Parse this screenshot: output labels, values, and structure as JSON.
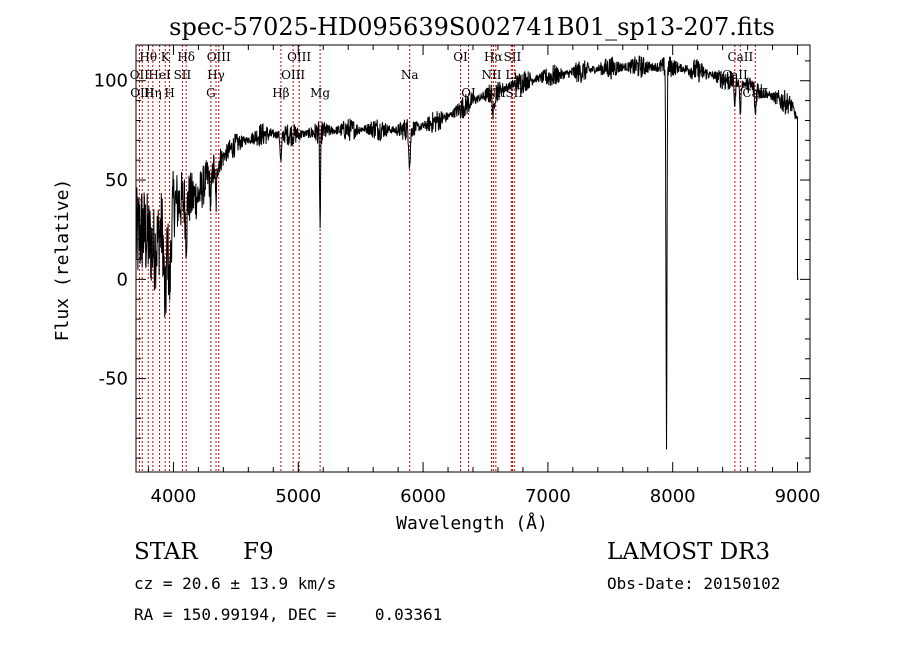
{
  "chart_data": {
    "type": "line",
    "title": "spec-57025-HD095639S002741B01_sp13-207.fits",
    "xlabel": "Wavelength (Å)",
    "ylabel": "Flux (relative)",
    "xlim": [
      3700,
      9100
    ],
    "ylim": [
      -97,
      118
    ],
    "xticks": [
      4000,
      5000,
      6000,
      7000,
      8000,
      9000
    ],
    "yticks": [
      -50,
      0,
      50,
      100
    ],
    "x_minor_step": 200,
    "y_minor_step": 10,
    "continuum": [
      [
        3700,
        20
      ],
      [
        3750,
        25
      ],
      [
        3800,
        20
      ],
      [
        3850,
        15
      ],
      [
        3900,
        25
      ],
      [
        3950,
        35
      ],
      [
        4000,
        38
      ],
      [
        4100,
        40
      ],
      [
        4200,
        42
      ],
      [
        4300,
        55
      ],
      [
        4400,
        62
      ],
      [
        4500,
        68
      ],
      [
        4700,
        73
      ],
      [
        5000,
        73
      ],
      [
        5300,
        75
      ],
      [
        5600,
        76
      ],
      [
        5800,
        75
      ],
      [
        6000,
        77
      ],
      [
        6200,
        82
      ],
      [
        6400,
        90
      ],
      [
        6600,
        95
      ],
      [
        6800,
        100
      ],
      [
        7000,
        102
      ],
      [
        7200,
        104
      ],
      [
        7400,
        106
      ],
      [
        7600,
        107
      ],
      [
        7800,
        107
      ],
      [
        8000,
        107
      ],
      [
        8200,
        105
      ],
      [
        8400,
        101
      ],
      [
        8600,
        98
      ],
      [
        8800,
        92
      ],
      [
        8950,
        88
      ],
      [
        9000,
        80
      ]
    ],
    "absorption_features": [
      {
        "center": 3934,
        "depth": 45,
        "width": 10
      },
      {
        "center": 3969,
        "depth": 40,
        "width": 10
      },
      {
        "center": 4102,
        "depth": 18,
        "width": 6
      },
      {
        "center": 4300,
        "depth": 14,
        "width": 8
      },
      {
        "center": 4341,
        "depth": 20,
        "width": 6
      },
      {
        "center": 4861,
        "depth": 14,
        "width": 6
      },
      {
        "center": 5175,
        "depth": 48,
        "width": 4
      },
      {
        "center": 5893,
        "depth": 18,
        "width": 6
      },
      {
        "center": 6563,
        "depth": 12,
        "width": 6
      },
      {
        "center": 7950,
        "depth": 190,
        "width": 4
      },
      {
        "center": 8498,
        "depth": 12,
        "width": 5
      },
      {
        "center": 8542,
        "depth": 16,
        "width": 5
      },
      {
        "center": 8662,
        "depth": 14,
        "width": 5
      }
    ],
    "tail": {
      "x": 9000,
      "y": 0
    },
    "noise_amplitude_blue": 20,
    "noise_amplitude_red": 4,
    "line_markers": [
      {
        "wavelength": 3727,
        "label": "OII",
        "row": 1
      },
      {
        "wavelength": 3750,
        "label": "OIII",
        "row": 2
      },
      {
        "wavelength": 3798,
        "label": "Hθ",
        "row": 0
      },
      {
        "wavelength": 3835,
        "label": "Hη",
        "row": 2
      },
      {
        "wavelength": 3889,
        "label": "HeI",
        "row": 1
      },
      {
        "wavelength": 3934,
        "label": "K",
        "row": 0
      },
      {
        "wavelength": 3969,
        "label": "H",
        "row": 2
      },
      {
        "wavelength": 4072,
        "label": "SII",
        "row": 1
      },
      {
        "wavelength": 4102,
        "label": "Hδ",
        "row": 0
      },
      {
        "wavelength": 4300,
        "label": "G",
        "row": 2
      },
      {
        "wavelength": 4341,
        "label": "Hγ",
        "row": 1
      },
      {
        "wavelength": 4363,
        "label": "OIII",
        "row": 0
      },
      {
        "wavelength": 4861,
        "label": "Hβ",
        "row": 2
      },
      {
        "wavelength": 4959,
        "label": "OIII",
        "row": 1
      },
      {
        "wavelength": 5007,
        "label": "OIII",
        "row": 0
      },
      {
        "wavelength": 5175,
        "label": "Mg",
        "row": 2
      },
      {
        "wavelength": 5893,
        "label": "Na",
        "row": 1
      },
      {
        "wavelength": 6300,
        "label": "OI",
        "row": 0
      },
      {
        "wavelength": 6364,
        "label": "OI",
        "row": 2
      },
      {
        "wavelength": 6548,
        "label": "NII",
        "row": 1
      },
      {
        "wavelength": 6563,
        "label": "Hα",
        "row": 0
      },
      {
        "wavelength": 6583,
        "label": "NII",
        "row": 2
      },
      {
        "wavelength": 6707,
        "label": "Li",
        "row": 1
      },
      {
        "wavelength": 6716,
        "label": "SII",
        "row": 0
      },
      {
        "wavelength": 6731,
        "label": "SII",
        "row": 2
      },
      {
        "wavelength": 8498,
        "label": "CaII",
        "row": 1
      },
      {
        "wavelength": 8542,
        "label": "CaII",
        "row": 0
      },
      {
        "wavelength": 8662,
        "label": "CaII",
        "row": 2
      }
    ]
  },
  "info": {
    "object_class": "STAR",
    "subclass": "F9",
    "survey": "LAMOST DR3",
    "redshift_text": "cz = 20.6 ± 13.9 km/s",
    "obs_date": "Obs-Date: 20150102",
    "coords": "RA = 150.99194, DEC =    0.03361"
  },
  "colors": {
    "line": "#000000",
    "marker": "#cc0000",
    "axis": "#000000"
  }
}
